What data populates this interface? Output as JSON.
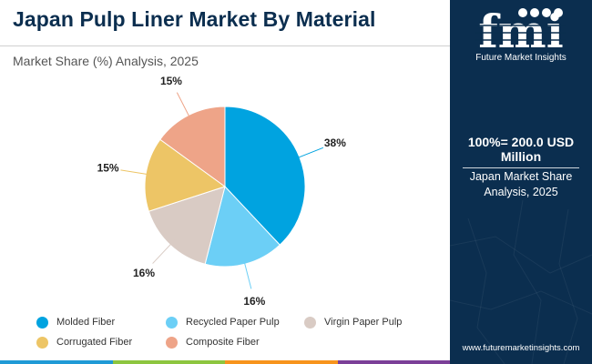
{
  "header": {
    "title": "Japan Pulp Liner Market By Material",
    "subtitle": "Market Share (%) Analysis, 2025"
  },
  "chart_data": {
    "type": "pie",
    "title": "Japan Pulp Liner Market By Material",
    "subtitle": "Market Share (%) Analysis, 2025",
    "unit": "%",
    "start_angle_deg": 0,
    "direction": "clockwise",
    "slices": [
      {
        "name": "Molded Fiber",
        "value": 38,
        "label": "38%",
        "color": "#00a3e0"
      },
      {
        "name": "Recycled Paper Pulp",
        "value": 16,
        "label": "16%",
        "color": "#6ccff6"
      },
      {
        "name": "Virgin Paper Pulp",
        "value": 16,
        "label": "16%",
        "color": "#d9cbc4"
      },
      {
        "name": "Corrugated Fiber",
        "value": 15,
        "label": "15%",
        "color": "#edc566"
      },
      {
        "name": "Composite Fiber",
        "value": 15,
        "label": "15%",
        "color": "#eea488"
      }
    ],
    "legend_position": "bottom"
  },
  "legend": {
    "items": [
      {
        "label": "Molded Fiber",
        "color": "#00a3e0"
      },
      {
        "label": "Recycled Paper Pulp",
        "color": "#6ccff6"
      },
      {
        "label": "Virgin Paper Pulp",
        "color": "#d9cbc4"
      },
      {
        "label": "Corrugated Fiber",
        "color": "#edc566"
      },
      {
        "label": "Composite Fiber",
        "color": "#eea488"
      }
    ]
  },
  "side_panel": {
    "logo_text": "fmi",
    "logo_tagline": "Future Market Insights",
    "total": "100%= 200.0 USD Million",
    "caption": "Japan Market Share Analysis, 2025",
    "url": "www.futuremarketinsights.com",
    "background_color": "#0b2e4f"
  },
  "bottom_bar_colors": [
    "#1f9ad6",
    "#8dc63f",
    "#f7941d",
    "#7b3f98"
  ]
}
